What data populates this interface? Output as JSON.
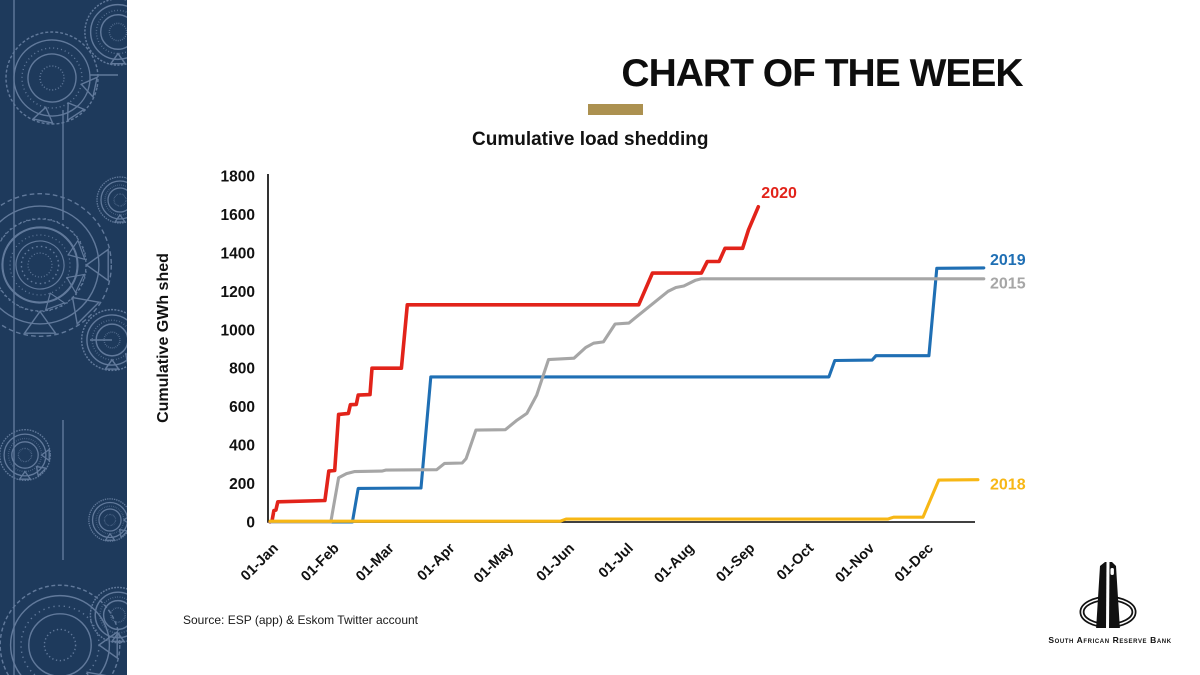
{
  "header": {
    "title": "CHART OF THE WEEK",
    "accent_color": "#ac9150"
  },
  "source": {
    "text": "Source: ESP (app) & Eskom Twitter account"
  },
  "logo": {
    "caption": "South African Reserve Bank"
  },
  "sidebar": {
    "background": "#1e3a5c",
    "pattern_color": "#6d85a6"
  },
  "chart_data": {
    "type": "line",
    "title": "Cumulative load shedding",
    "ylabel": "Cumulative GWh shed",
    "ylim": [
      0,
      1800
    ],
    "y_ticks": [
      0,
      200,
      400,
      600,
      800,
      1000,
      1200,
      1400,
      1600,
      1800
    ],
    "x_ticks": [
      "01-Jan",
      "01-Feb",
      "01-Mar",
      "01-Apr",
      "01-May",
      "01-Jun",
      "01-Jul",
      "01-Aug",
      "01-Sep",
      "01-Oct",
      "01-Nov",
      "01-Dec"
    ],
    "x_tick_days": [
      1,
      32,
      60,
      91,
      121,
      152,
      182,
      213,
      244,
      274,
      305,
      335
    ],
    "x_unit": "day of year",
    "grid": false,
    "legend_position": "line-end-labels",
    "series": [
      {
        "name": "2020",
        "color": "#e2231a",
        "points": [
          [
            1,
            0
          ],
          [
            2,
            5
          ],
          [
            3,
            60
          ],
          [
            4,
            62
          ],
          [
            5,
            105
          ],
          [
            29,
            112
          ],
          [
            31,
            265
          ],
          [
            34,
            268
          ],
          [
            36,
            560
          ],
          [
            41,
            565
          ],
          [
            42,
            610
          ],
          [
            45,
            612
          ],
          [
            46,
            660
          ],
          [
            52,
            663
          ],
          [
            53,
            800
          ],
          [
            68,
            800
          ],
          [
            71,
            1130
          ],
          [
            189,
            1130
          ],
          [
            196,
            1295
          ],
          [
            221,
            1295
          ],
          [
            224,
            1355
          ],
          [
            230,
            1355
          ],
          [
            233,
            1424
          ],
          [
            242,
            1424
          ],
          [
            245,
            1520
          ],
          [
            250,
            1640
          ]
        ]
      },
      {
        "name": "2019",
        "color": "#1f6fb4",
        "points": [
          [
            1,
            0
          ],
          [
            43,
            0
          ],
          [
            46,
            175
          ],
          [
            78,
            177
          ],
          [
            83,
            755
          ],
          [
            286,
            755
          ],
          [
            289,
            840
          ],
          [
            308,
            842
          ],
          [
            310,
            865
          ],
          [
            337,
            865
          ],
          [
            341,
            1320
          ],
          [
            365,
            1322
          ]
        ]
      },
      {
        "name": "2015",
        "color": "#a6a6a6",
        "points": [
          [
            1,
            0
          ],
          [
            32,
            0
          ],
          [
            36,
            230
          ],
          [
            40,
            252
          ],
          [
            44,
            262
          ],
          [
            58,
            265
          ],
          [
            60,
            270
          ],
          [
            86,
            272
          ],
          [
            90,
            305
          ],
          [
            99,
            307
          ],
          [
            101,
            330
          ],
          [
            106,
            478
          ],
          [
            121,
            480
          ],
          [
            127,
            530
          ],
          [
            132,
            565
          ],
          [
            137,
            660
          ],
          [
            143,
            845
          ],
          [
            156,
            852
          ],
          [
            162,
            908
          ],
          [
            166,
            930
          ],
          [
            171,
            937
          ],
          [
            177,
            1030
          ],
          [
            184,
            1035
          ],
          [
            187,
            1060
          ],
          [
            204,
            1200
          ],
          [
            208,
            1220
          ],
          [
            212,
            1228
          ],
          [
            218,
            1258
          ],
          [
            221,
            1265
          ],
          [
            365,
            1265
          ]
        ]
      },
      {
        "name": "2018",
        "color": "#f7b715",
        "points": [
          [
            1,
            4
          ],
          [
            149,
            4
          ],
          [
            152,
            15
          ],
          [
            316,
            15
          ],
          [
            319,
            25
          ],
          [
            334,
            25
          ],
          [
            342,
            218
          ],
          [
            362,
            220
          ]
        ]
      }
    ]
  }
}
